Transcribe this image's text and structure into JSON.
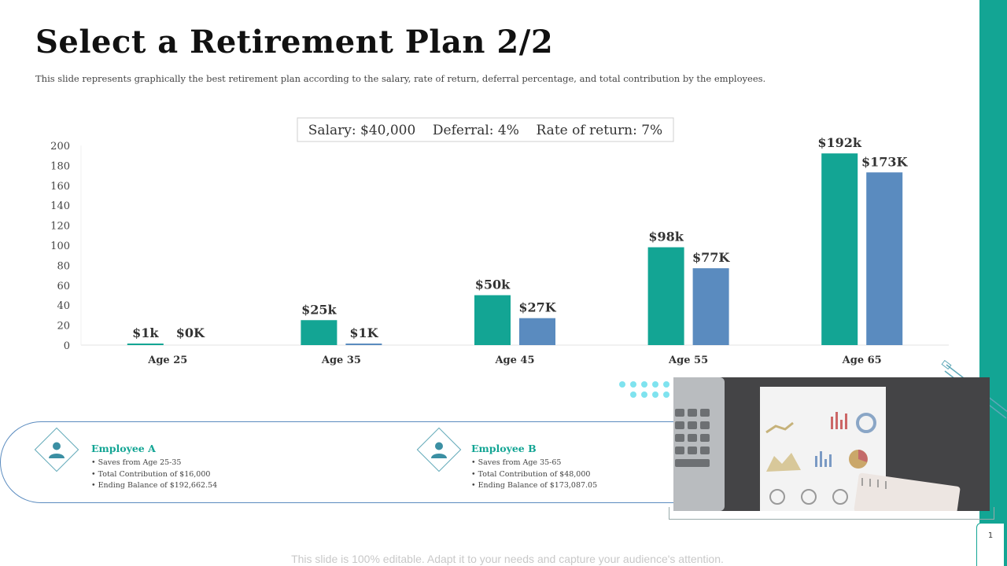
{
  "title": "Select a Retirement Plan 2/2",
  "subtitle": "This slide represents graphically the best retirement plan according to the salary, rate of return, deferral percentage, and total contribution by the employees.",
  "colors": {
    "teal": "#13a594",
    "blue": "#5a8bbf"
  },
  "chart_data": {
    "type": "bar",
    "title": "Salary: $40,000    Deferral: 4%    Rate of return: 7%",
    "categories": [
      "Age 25",
      "Age 35",
      "Age 45",
      "Age 55",
      "Age 65"
    ],
    "series": [
      {
        "name": "Employee A",
        "values": [
          1,
          25,
          50,
          98,
          192
        ],
        "labels": [
          "$1k",
          "$25k",
          "$50k",
          "$98k",
          "$192k"
        ]
      },
      {
        "name": "Employee B",
        "values": [
          0,
          1,
          27,
          77,
          173
        ],
        "labels": [
          "$0K",
          "$1K",
          "$27K",
          "$77K",
          "$173K"
        ]
      }
    ],
    "ylim": [
      0,
      200
    ],
    "yticks": [
      0,
      20,
      40,
      60,
      80,
      100,
      120,
      140,
      160,
      180,
      200
    ],
    "xlabel": "",
    "ylabel": ""
  },
  "employees": [
    {
      "name": "Employee A",
      "items": [
        "Saves from Age 25-35",
        "Total Contribution of $16,000",
        "Ending Balance of $192,662.54"
      ]
    },
    {
      "name": "Employee B",
      "items": [
        "Saves from Age 35-65",
        "Total Contribution of $48,000",
        "Ending Balance of $173,087.05"
      ]
    }
  ],
  "page_number": "1",
  "footer": "This slide is 100% editable. Adapt it to your needs and capture your audience's attention."
}
